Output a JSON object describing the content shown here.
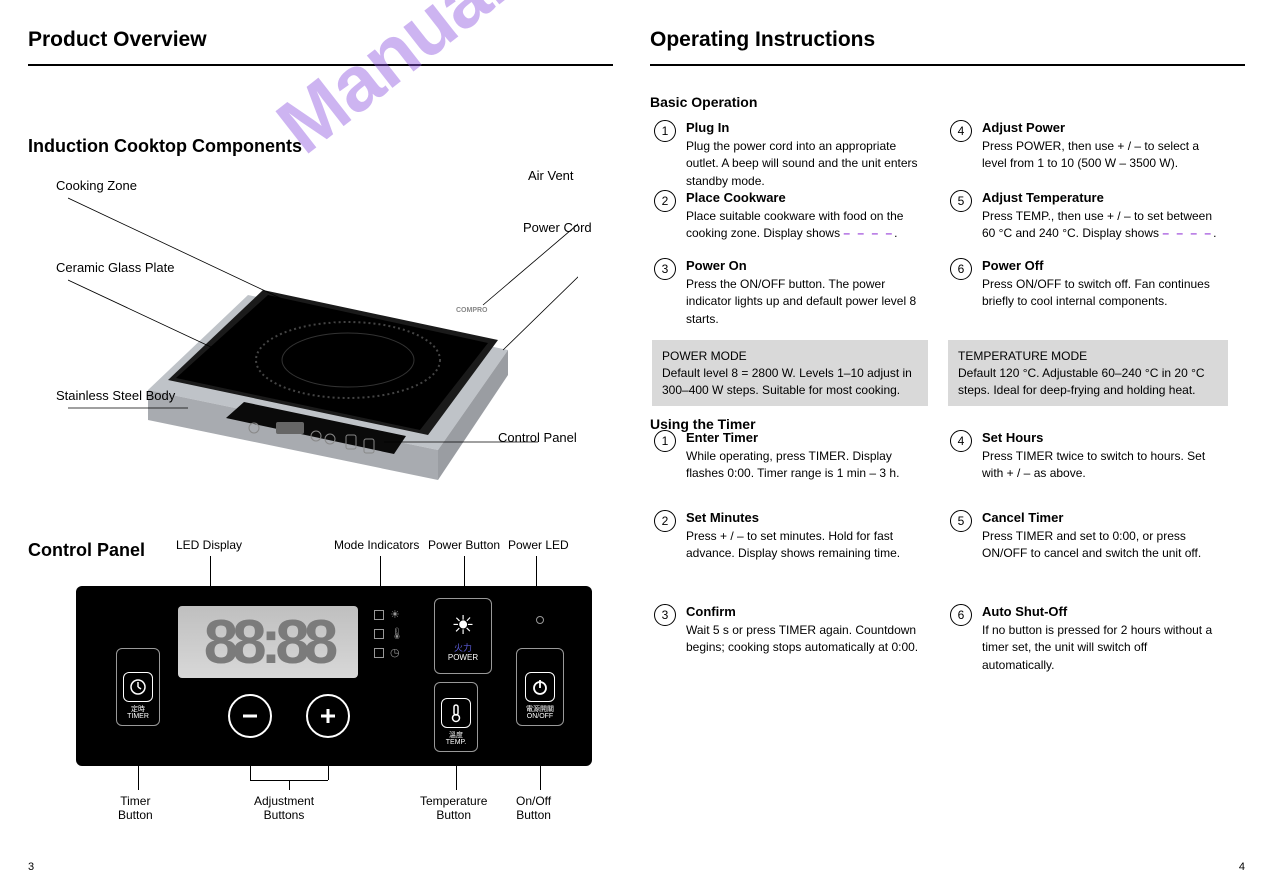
{
  "watermark_text": "Manualshive.com",
  "left": {
    "header_title": "Product Overview",
    "subtitle1": "Induction Cooktop Components",
    "labels": {
      "cooking_zone": "Cooking Zone",
      "ceramic_plate": "Ceramic Glass Plate",
      "body": "Stainless Steel Body",
      "air_vent": "Air Vent",
      "control_panel": "Control Panel",
      "power_cord": "Power Cord"
    },
    "subtitle2": "Control Panel",
    "panel": {
      "display": "88:88",
      "timer_btn": "定時\nTIMER",
      "power_btn_top": "火力",
      "power_btn_bottom": "POWER",
      "temp_btn": "溫度\nTEMP.",
      "onoff_btn": "電源開關\nON/OFF",
      "callouts": {
        "display": "LED Display",
        "mode": "Mode Indicators",
        "power": "Power Button",
        "led": "Power LED",
        "timer": "Timer\nButton",
        "adjust": "Adjustment\nButtons",
        "temp": "Temperature\nButton",
        "onoff": "On/Off\nButton"
      }
    },
    "page_num": "3"
  },
  "right": {
    "header_title": "Operating Instructions",
    "section1_title": "Basic Operation",
    "steps1": [
      {
        "n": "1",
        "title": "Plug In",
        "body": "Plug the power cord into an appropriate outlet. A beep will sound and the unit enters standby mode."
      },
      {
        "n": "2",
        "title": "Place Cookware",
        "body": "Place suitable cookware with food on the cooking zone. Display shows",
        "tail": "."
      },
      {
        "n": "3",
        "title": "Power On",
        "body": "Press the ON/OFF button. The power indicator lights up and default power level 8 starts."
      },
      {
        "n": "4",
        "title": "Adjust Power",
        "body": "Press POWER, then use + / – to select a level from 1 to 10 (500 W – 3500 W)."
      },
      {
        "n": "5",
        "title": "Adjust Temperature",
        "body": "Press TEMP., then use + / – to set between 60 °C and 240 °C. Display shows",
        "tail": "."
      },
      {
        "n": "6",
        "title": "Power Off",
        "body": "Press ON/OFF to switch off. Fan continues briefly to cool internal components."
      }
    ],
    "dashes": "– – – –",
    "box1": "POWER MODE\nDefault level 8 = 2800 W. Levels 1–10 adjust in 300–400 W steps. Suitable for most cooking.",
    "box2": "TEMPERATURE MODE\nDefault 120 °C. Adjustable 60–240 °C in 20 °C steps. Ideal for deep-frying and holding heat.",
    "section2_title": "Using the Timer",
    "steps2": [
      {
        "n": "1",
        "title": "Enter Timer",
        "body": "While operating, press TIMER. Display flashes 0:00. Timer range is 1 min – 3 h."
      },
      {
        "n": "2",
        "title": "Set Minutes",
        "body": "Press + / – to set minutes. Hold for fast advance. Display shows remaining time."
      },
      {
        "n": "3",
        "title": "Confirm",
        "body": "Wait 5 s or press TIMER again. Countdown begins; cooking stops automatically at 0:00."
      },
      {
        "n": "4",
        "title": "Set Hours",
        "body": "Press TIMER twice to switch to hours. Set with + / – as above."
      },
      {
        "n": "5",
        "title": "Cancel Timer",
        "body": "Press TIMER and set to 0:00, or press ON/OFF to cancel and switch the unit off."
      },
      {
        "n": "6",
        "title": "Auto Shut-Off",
        "body": "If no button is pressed for 2 hours without a timer set, the unit will switch off automatically."
      }
    ],
    "page_num": "4"
  },
  "colors": {
    "watermark": "#8a4fe0",
    "gray_box": "#d9d9d9",
    "panel_bg": "#000000",
    "panel_blue": "#5b5bd6"
  }
}
